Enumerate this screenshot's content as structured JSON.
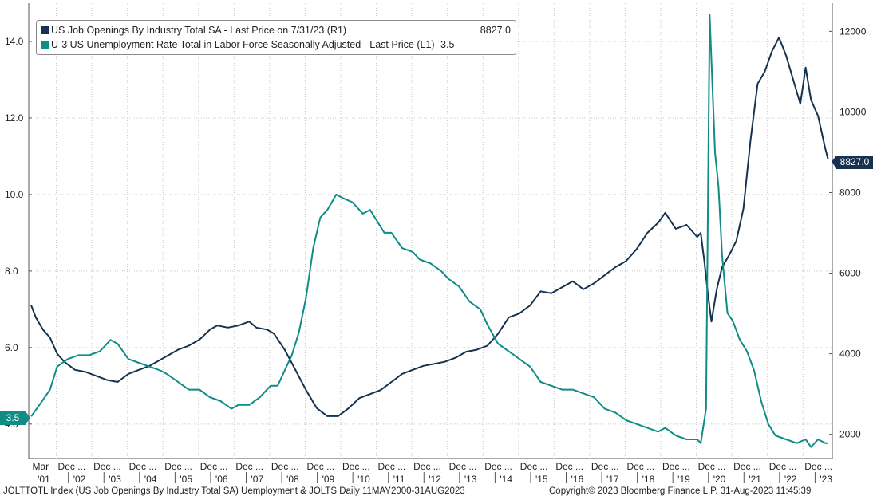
{
  "legend": {
    "series1_label": "US Job Openings By Industry Total SA - Last Price on 7/31/23 (R1)",
    "series1_value": "8827.0",
    "series2_label": "U-3 US Unemployment Rate Total in Labor Force Seasonally Adjusted - Last Price (L1)",
    "series2_value": "3.5"
  },
  "tags": {
    "left": "3.5",
    "right": "8827.0"
  },
  "footer": {
    "left": "JOLTTOTL Index (US Job Openings By Industry Total SA) Uemployment & JOLTS  Daily 11MAY2000-31AUG2023",
    "right": "Copyright© 2023 Bloomberg Finance L.P.      31-Aug-2023 11:45:39"
  },
  "chart_data": {
    "type": "line",
    "title": "",
    "colors": {
      "job_openings": "#16324f",
      "unemployment": "#0e8c85",
      "grid": "#c8c8c8"
    },
    "left_axis": {
      "ylim": [
        3.1,
        15.0
      ],
      "ticks": [
        4.0,
        6.0,
        8.0,
        10.0,
        12.0,
        14.0
      ],
      "tick_labels": [
        "4.0",
        "6.0",
        "8.0",
        "10.0",
        "12.0",
        "14.0"
      ]
    },
    "right_axis": {
      "ylim": [
        1400,
        12700
      ],
      "ticks": [
        2000,
        4000,
        6000,
        8000,
        10000,
        12000
      ],
      "tick_labels": [
        "2000",
        "4000",
        "6000",
        "8000",
        "10000",
        "12000"
      ]
    },
    "x_range": [
      2001.1,
      2023.7
    ],
    "month_labels": [
      {
        "x": 2001.2,
        "label": "Mar"
      },
      {
        "x": 2001.92,
        "label": "Dec ..."
      },
      {
        "x": 2002.92,
        "label": "Dec ..."
      },
      {
        "x": 2003.92,
        "label": "Dec ..."
      },
      {
        "x": 2004.92,
        "label": "Dec ..."
      },
      {
        "x": 2005.92,
        "label": "Dec ..."
      },
      {
        "x": 2006.92,
        "label": "Dec ..."
      },
      {
        "x": 2007.92,
        "label": "Dec ..."
      },
      {
        "x": 2008.92,
        "label": "Dec ..."
      },
      {
        "x": 2009.92,
        "label": "Dec ..."
      },
      {
        "x": 2010.92,
        "label": "Dec ..."
      },
      {
        "x": 2011.92,
        "label": "Dec ..."
      },
      {
        "x": 2012.92,
        "label": "Dec ..."
      },
      {
        "x": 2013.92,
        "label": "Dec ..."
      },
      {
        "x": 2014.92,
        "label": "Dec ..."
      },
      {
        "x": 2015.92,
        "label": "Dec ..."
      },
      {
        "x": 2016.92,
        "label": "Dec ..."
      },
      {
        "x": 2017.92,
        "label": "Dec ..."
      },
      {
        "x": 2018.92,
        "label": "Dec ..."
      },
      {
        "x": 2019.92,
        "label": "Dec ..."
      },
      {
        "x": 2020.92,
        "label": "Dec ..."
      },
      {
        "x": 2021.92,
        "label": "Dec ..."
      },
      {
        "x": 2022.92,
        "label": "Dec ..."
      }
    ],
    "year_labels": [
      {
        "x": 2001.35,
        "label": "'01"
      },
      {
        "x": 2002.35,
        "label": "'02"
      },
      {
        "x": 2003.35,
        "label": "'03"
      },
      {
        "x": 2004.35,
        "label": "'04"
      },
      {
        "x": 2005.35,
        "label": "'05"
      },
      {
        "x": 2006.35,
        "label": "'06"
      },
      {
        "x": 2007.35,
        "label": "'07"
      },
      {
        "x": 2008.35,
        "label": "'08"
      },
      {
        "x": 2009.35,
        "label": "'09"
      },
      {
        "x": 2010.35,
        "label": "'10"
      },
      {
        "x": 2011.35,
        "label": "'11"
      },
      {
        "x": 2012.35,
        "label": "'12"
      },
      {
        "x": 2013.35,
        "label": "'13"
      },
      {
        "x": 2014.35,
        "label": "'14"
      },
      {
        "x": 2015.35,
        "label": "'15"
      },
      {
        "x": 2016.35,
        "label": "'16"
      },
      {
        "x": 2017.35,
        "label": "'17"
      },
      {
        "x": 2018.35,
        "label": "'18"
      },
      {
        "x": 2019.35,
        "label": "'19"
      },
      {
        "x": 2020.35,
        "label": "'20"
      },
      {
        "x": 2021.35,
        "label": "'21"
      },
      {
        "x": 2022.35,
        "label": "'22"
      },
      {
        "x": 2023.35,
        "label": "'23"
      }
    ],
    "series": [
      {
        "name": "US Job Openings By Industry Total SA",
        "axis": "right",
        "points": [
          [
            2001.17,
            5200
          ],
          [
            2001.3,
            4900
          ],
          [
            2001.5,
            4600
          ],
          [
            2001.7,
            4400
          ],
          [
            2001.9,
            4000
          ],
          [
            2002.1,
            3800
          ],
          [
            2002.4,
            3600
          ],
          [
            2002.7,
            3550
          ],
          [
            2003.0,
            3450
          ],
          [
            2003.3,
            3350
          ],
          [
            2003.6,
            3300
          ],
          [
            2003.9,
            3500
          ],
          [
            2004.2,
            3600
          ],
          [
            2004.5,
            3700
          ],
          [
            2004.8,
            3850
          ],
          [
            2005.0,
            3950
          ],
          [
            2005.3,
            4100
          ],
          [
            2005.6,
            4200
          ],
          [
            2005.9,
            4350
          ],
          [
            2006.2,
            4600
          ],
          [
            2006.4,
            4700
          ],
          [
            2006.7,
            4650
          ],
          [
            2007.0,
            4700
          ],
          [
            2007.3,
            4800
          ],
          [
            2007.5,
            4650
          ],
          [
            2007.8,
            4600
          ],
          [
            2008.0,
            4500
          ],
          [
            2008.3,
            4100
          ],
          [
            2008.6,
            3600
          ],
          [
            2008.9,
            3100
          ],
          [
            2009.2,
            2650
          ],
          [
            2009.5,
            2450
          ],
          [
            2009.8,
            2450
          ],
          [
            2010.1,
            2650
          ],
          [
            2010.4,
            2900
          ],
          [
            2010.7,
            3000
          ],
          [
            2011.0,
            3100
          ],
          [
            2011.3,
            3300
          ],
          [
            2011.6,
            3500
          ],
          [
            2011.9,
            3600
          ],
          [
            2012.2,
            3700
          ],
          [
            2012.5,
            3750
          ],
          [
            2012.8,
            3800
          ],
          [
            2013.1,
            3900
          ],
          [
            2013.4,
            4050
          ],
          [
            2013.7,
            4100
          ],
          [
            2014.0,
            4200
          ],
          [
            2014.3,
            4500
          ],
          [
            2014.6,
            4900
          ],
          [
            2014.9,
            5000
          ],
          [
            2015.2,
            5200
          ],
          [
            2015.5,
            5550
          ],
          [
            2015.8,
            5500
          ],
          [
            2016.1,
            5650
          ],
          [
            2016.4,
            5800
          ],
          [
            2016.7,
            5600
          ],
          [
            2017.0,
            5750
          ],
          [
            2017.3,
            5950
          ],
          [
            2017.6,
            6150
          ],
          [
            2017.9,
            6300
          ],
          [
            2018.2,
            6600
          ],
          [
            2018.5,
            7000
          ],
          [
            2018.8,
            7250
          ],
          [
            2019.0,
            7500
          ],
          [
            2019.3,
            7100
          ],
          [
            2019.6,
            7200
          ],
          [
            2019.9,
            6900
          ],
          [
            2020.0,
            7000
          ],
          [
            2020.1,
            6300
          ],
          [
            2020.2,
            5500
          ],
          [
            2020.3,
            4800
          ],
          [
            2020.45,
            5600
          ],
          [
            2020.6,
            6150
          ],
          [
            2020.8,
            6450
          ],
          [
            2021.0,
            6800
          ],
          [
            2021.2,
            7600
          ],
          [
            2021.4,
            9300
          ],
          [
            2021.6,
            10700
          ],
          [
            2021.8,
            11000
          ],
          [
            2022.0,
            11500
          ],
          [
            2022.2,
            11850
          ],
          [
            2022.4,
            11400
          ],
          [
            2022.6,
            10800
          ],
          [
            2022.8,
            10200
          ],
          [
            2022.95,
            11100
          ],
          [
            2023.1,
            10300
          ],
          [
            2023.3,
            9900
          ],
          [
            2023.5,
            9100
          ],
          [
            2023.58,
            8827
          ]
        ]
      },
      {
        "name": "U-3 US Unemployment Rate Total in Labor Force Seasonally Adjusted",
        "axis": "left",
        "points": [
          [
            2001.17,
            4.2
          ],
          [
            2001.4,
            4.5
          ],
          [
            2001.7,
            4.9
          ],
          [
            2001.9,
            5.5
          ],
          [
            2002.2,
            5.7
          ],
          [
            2002.5,
            5.8
          ],
          [
            2002.8,
            5.8
          ],
          [
            2003.1,
            5.9
          ],
          [
            2003.4,
            6.2
          ],
          [
            2003.6,
            6.1
          ],
          [
            2003.9,
            5.7
          ],
          [
            2004.2,
            5.6
          ],
          [
            2004.5,
            5.5
          ],
          [
            2004.8,
            5.4
          ],
          [
            2005.0,
            5.3
          ],
          [
            2005.3,
            5.1
          ],
          [
            2005.6,
            4.9
          ],
          [
            2005.9,
            4.9
          ],
          [
            2006.2,
            4.7
          ],
          [
            2006.5,
            4.6
          ],
          [
            2006.8,
            4.4
          ],
          [
            2007.0,
            4.5
          ],
          [
            2007.3,
            4.5
          ],
          [
            2007.6,
            4.7
          ],
          [
            2007.9,
            5.0
          ],
          [
            2008.1,
            5.0
          ],
          [
            2008.3,
            5.4
          ],
          [
            2008.5,
            5.8
          ],
          [
            2008.7,
            6.4
          ],
          [
            2008.9,
            7.3
          ],
          [
            2009.1,
            8.6
          ],
          [
            2009.3,
            9.4
          ],
          [
            2009.5,
            9.6
          ],
          [
            2009.75,
            10.0
          ],
          [
            2009.95,
            9.9
          ],
          [
            2010.2,
            9.8
          ],
          [
            2010.5,
            9.5
          ],
          [
            2010.7,
            9.6
          ],
          [
            2010.9,
            9.3
          ],
          [
            2011.1,
            9.0
          ],
          [
            2011.3,
            9.0
          ],
          [
            2011.6,
            8.6
          ],
          [
            2011.9,
            8.5
          ],
          [
            2012.1,
            8.3
          ],
          [
            2012.4,
            8.2
          ],
          [
            2012.7,
            8.0
          ],
          [
            2012.9,
            7.8
          ],
          [
            2013.2,
            7.6
          ],
          [
            2013.5,
            7.2
          ],
          [
            2013.8,
            7.0
          ],
          [
            2014.0,
            6.6
          ],
          [
            2014.3,
            6.1
          ],
          [
            2014.6,
            5.9
          ],
          [
            2014.9,
            5.7
          ],
          [
            2015.2,
            5.5
          ],
          [
            2015.5,
            5.1
          ],
          [
            2015.8,
            5.0
          ],
          [
            2016.1,
            4.9
          ],
          [
            2016.4,
            4.9
          ],
          [
            2016.7,
            4.8
          ],
          [
            2017.0,
            4.7
          ],
          [
            2017.3,
            4.4
          ],
          [
            2017.6,
            4.3
          ],
          [
            2017.9,
            4.1
          ],
          [
            2018.2,
            4.0
          ],
          [
            2018.5,
            3.9
          ],
          [
            2018.8,
            3.8
          ],
          [
            2019.0,
            3.9
          ],
          [
            2019.3,
            3.7
          ],
          [
            2019.6,
            3.6
          ],
          [
            2019.9,
            3.6
          ],
          [
            2020.0,
            3.5
          ],
          [
            2020.15,
            4.4
          ],
          [
            2020.25,
            14.7
          ],
          [
            2020.4,
            11.1
          ],
          [
            2020.5,
            10.2
          ],
          [
            2020.6,
            8.4
          ],
          [
            2020.75,
            6.9
          ],
          [
            2020.9,
            6.7
          ],
          [
            2021.1,
            6.2
          ],
          [
            2021.3,
            5.9
          ],
          [
            2021.5,
            5.4
          ],
          [
            2021.7,
            4.6
          ],
          [
            2021.9,
            4.0
          ],
          [
            2022.1,
            3.7
          ],
          [
            2022.4,
            3.6
          ],
          [
            2022.7,
            3.5
          ],
          [
            2022.95,
            3.6
          ],
          [
            2023.1,
            3.4
          ],
          [
            2023.3,
            3.6
          ],
          [
            2023.5,
            3.5
          ],
          [
            2023.58,
            3.5
          ]
        ]
      }
    ]
  }
}
